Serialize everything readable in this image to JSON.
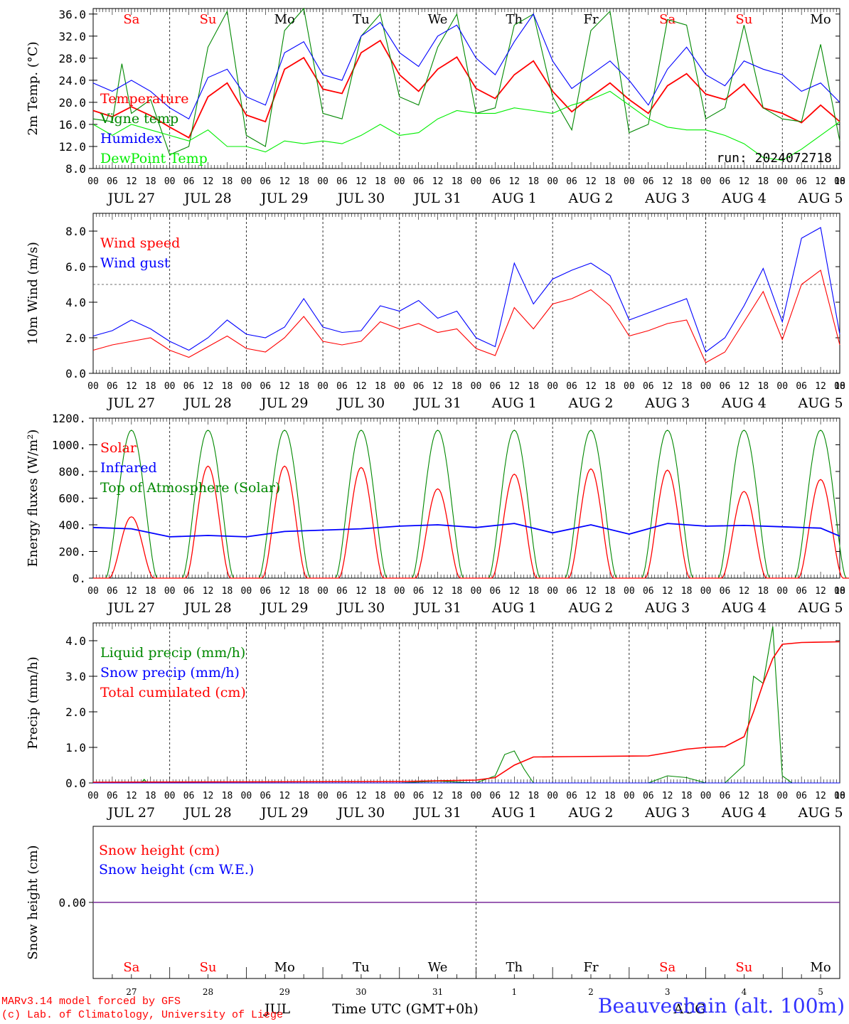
{
  "footer": {
    "credit1": "MARv3.14 model forced by GFS",
    "credit2": "(c) Lab. of Climatology, University of Liege",
    "xaxis_label": "Time UTC (GMT+0h)",
    "month1": "JUL",
    "month2": "AUG",
    "station": "Beauvechain (alt. 100m)"
  },
  "chart_data": [
    {
      "type": "line",
      "ylabel": "2m Temp. (°C)",
      "ylim": [
        8,
        37
      ],
      "yticks": [
        "8.0",
        "12.0",
        "16.0",
        "20.0",
        "24.0",
        "28.0",
        "32.0",
        "36.0"
      ],
      "run_label": "run: 2024072718",
      "day_labels": [
        "Sa",
        "Su",
        "Mo",
        "Tu",
        "We",
        "Th",
        "Fr",
        "Sa",
        "Su",
        "Mo"
      ],
      "date_labels": [
        "JUL 27",
        "JUL 28",
        "JUL 29",
        "JUL 30",
        "JUL 31",
        "AUG  1",
        "AUG  2",
        "AUG  3",
        "AUG  4",
        "AUG  5"
      ],
      "hour_labels": [
        "00",
        "06",
        "12",
        "18"
      ],
      "legend": [
        {
          "name": "Temperature",
          "color": "#ff0000"
        },
        {
          "name": "Vigne temp",
          "color": "#008800"
        },
        {
          "name": "Humidex",
          "color": "#0000ff"
        },
        {
          "name": "DewPoint Temp",
          "color": "#00ee00"
        }
      ],
      "series": [
        {
          "name": "Temperature",
          "color": "#ff0000",
          "x": [
            0,
            6,
            12,
            18,
            24,
            30,
            36,
            42,
            48,
            54,
            60,
            66,
            72,
            78,
            84,
            90,
            96,
            102,
            108,
            114,
            120,
            126,
            132,
            138,
            144,
            150,
            156,
            162,
            168,
            174,
            180,
            186,
            192,
            198,
            204,
            210,
            216,
            222,
            228,
            234
          ],
          "values": [
            18.5,
            17.4,
            19.2,
            17.6,
            15.5,
            13.6,
            21.0,
            23.5,
            17.7,
            16.5,
            26.0,
            28.1,
            22.4,
            21.6,
            29.0,
            31.2,
            25.0,
            22.0,
            26.0,
            28.2,
            22.5,
            20.7,
            25.0,
            27.5,
            22.0,
            18.3,
            21.0,
            23.5,
            20.5,
            18.0,
            23.0,
            25.2,
            21.5,
            20.5,
            23.3,
            19.0,
            18.0,
            16.3,
            19.5,
            16.5
          ]
        },
        {
          "name": "Vigne temp",
          "color": "#008800",
          "x": [
            0,
            6,
            9,
            12,
            18,
            24,
            30,
            36,
            42,
            48,
            54,
            60,
            66,
            72,
            78,
            84,
            90,
            96,
            102,
            108,
            114,
            120,
            126,
            132,
            138,
            144,
            150,
            156,
            162,
            168,
            174,
            180,
            186,
            192,
            198,
            204,
            210,
            216,
            222,
            228,
            234
          ],
          "values": [
            17.0,
            16.5,
            27.0,
            18.0,
            20.5,
            10.5,
            12.0,
            30.0,
            36.5,
            14.0,
            12.0,
            33.0,
            37.0,
            18.0,
            17.0,
            32.0,
            36.0,
            21.0,
            19.5,
            30.0,
            36.0,
            18.0,
            19.0,
            34.0,
            36.0,
            21.0,
            15.0,
            33.0,
            36.5,
            14.5,
            16.0,
            35.0,
            34.0,
            17.0,
            19.0,
            34.0,
            19.0,
            17.0,
            16.5,
            30.5,
            13.0
          ]
        },
        {
          "name": "Humidex",
          "color": "#0000ff",
          "x": [
            0,
            6,
            12,
            18,
            24,
            30,
            36,
            42,
            48,
            54,
            60,
            66,
            72,
            78,
            84,
            90,
            96,
            102,
            108,
            114,
            120,
            126,
            132,
            138,
            144,
            150,
            156,
            162,
            168,
            174,
            180,
            186,
            192,
            198,
            204,
            210,
            216,
            222,
            228,
            234
          ],
          "values": [
            23.5,
            22.0,
            24.0,
            22.0,
            19.0,
            17.0,
            24.5,
            26.0,
            21.0,
            19.5,
            29.0,
            31.0,
            25.0,
            24.0,
            32.0,
            34.5,
            29.0,
            26.5,
            32.0,
            34.0,
            28.0,
            25.0,
            31.0,
            36.0,
            27.5,
            22.5,
            25.0,
            27.5,
            24.0,
            19.5,
            26.0,
            30.0,
            25.0,
            23.0,
            27.5,
            26.0,
            25.0,
            22.0,
            23.5,
            20.0
          ]
        },
        {
          "name": "DewPoint Temp",
          "color": "#00ee00",
          "x": [
            0,
            6,
            12,
            18,
            24,
            30,
            36,
            42,
            48,
            54,
            60,
            66,
            72,
            78,
            84,
            90,
            96,
            102,
            108,
            114,
            120,
            126,
            132,
            138,
            144,
            150,
            156,
            162,
            168,
            174,
            180,
            186,
            192,
            198,
            204,
            210,
            216,
            222,
            228,
            234
          ],
          "values": [
            16.0,
            14.0,
            16.0,
            15.0,
            14.0,
            13.0,
            15.0,
            12.0,
            12.0,
            11.0,
            13.0,
            12.5,
            13.0,
            12.5,
            14.0,
            16.0,
            14.0,
            14.5,
            17.0,
            18.5,
            18.0,
            18.0,
            19.0,
            18.5,
            18.0,
            19.5,
            20.5,
            22.0,
            19.5,
            17.0,
            15.5,
            15.0,
            15.0,
            14.0,
            12.5,
            10.0,
            9.5,
            11.5,
            14.0,
            16.5
          ]
        }
      ]
    },
    {
      "type": "line",
      "ylabel": "10m Wind (m/s)",
      "ylim": [
        0,
        9
      ],
      "yticks": [
        "0.0",
        "2.0",
        "4.0",
        "6.0",
        "8.0"
      ],
      "reference_line": 5,
      "date_labels": [
        "JUL 27",
        "JUL 28",
        "JUL 29",
        "JUL 30",
        "JUL 31",
        "AUG  1",
        "AUG  2",
        "AUG  3",
        "AUG  4",
        "AUG  5"
      ],
      "legend": [
        {
          "name": "Wind speed",
          "color": "#ff0000"
        },
        {
          "name": "Wind gust",
          "color": "#0000ff"
        }
      ],
      "series": [
        {
          "name": "Wind speed",
          "color": "#ff0000",
          "x": [
            0,
            6,
            12,
            18,
            24,
            30,
            36,
            42,
            48,
            54,
            60,
            66,
            72,
            78,
            84,
            90,
            96,
            102,
            108,
            114,
            120,
            126,
            132,
            138,
            144,
            150,
            156,
            162,
            168,
            174,
            180,
            186,
            192,
            198,
            204,
            210,
            216,
            222,
            228,
            234
          ],
          "values": [
            1.3,
            1.6,
            1.8,
            2.0,
            1.3,
            0.9,
            1.5,
            2.1,
            1.4,
            1.2,
            2.0,
            3.2,
            1.8,
            1.6,
            1.8,
            2.9,
            2.5,
            2.8,
            2.3,
            2.5,
            1.4,
            1.0,
            3.7,
            2.5,
            3.9,
            4.2,
            4.7,
            3.8,
            2.1,
            2.4,
            2.8,
            3.0,
            0.6,
            1.2,
            2.9,
            4.6,
            1.9,
            5.0,
            5.8,
            1.6
          ]
        },
        {
          "name": "Wind gust",
          "color": "#0000ff",
          "x": [
            0,
            6,
            12,
            18,
            24,
            30,
            36,
            42,
            48,
            54,
            60,
            66,
            72,
            78,
            84,
            90,
            96,
            102,
            108,
            114,
            120,
            126,
            132,
            138,
            144,
            150,
            156,
            162,
            168,
            174,
            180,
            186,
            192,
            198,
            204,
            210,
            216,
            222,
            228,
            234
          ],
          "values": [
            2.1,
            2.4,
            3.0,
            2.5,
            1.8,
            1.3,
            2.0,
            3.0,
            2.2,
            2.0,
            2.6,
            4.2,
            2.6,
            2.3,
            2.4,
            3.8,
            3.5,
            4.1,
            3.1,
            3.5,
            2.0,
            1.5,
            6.2,
            3.9,
            5.3,
            5.8,
            6.2,
            5.5,
            3.0,
            3.4,
            3.8,
            4.2,
            1.2,
            2.0,
            3.8,
            5.9,
            2.9,
            7.6,
            8.2,
            2.2
          ]
        }
      ]
    },
    {
      "type": "line",
      "ylabel": "Energy fluxes (W/m²)",
      "ylim": [
        0,
        1200
      ],
      "yticks": [
        "0.",
        "200.",
        "400.",
        "600.",
        "800.",
        "1000.",
        "1200."
      ],
      "date_labels": [
        "JUL 27",
        "JUL 28",
        "JUL 29",
        "JUL 30",
        "JUL 31",
        "AUG  1",
        "AUG  2",
        "AUG  3",
        "AUG  4",
        "AUG  5"
      ],
      "legend": [
        {
          "name": "Solar",
          "color": "#ff0000"
        },
        {
          "name": "Infrared",
          "color": "#0000ff"
        },
        {
          "name": "Top of Atmosphere (Solar)",
          "color": "#008800"
        }
      ],
      "toa_peak": 1110,
      "solar_peaks": [
        460,
        840,
        840,
        830,
        670,
        780,
        820,
        810,
        650,
        740
      ],
      "series": [
        {
          "name": "Infrared",
          "color": "#0000ff",
          "x": [
            0,
            12,
            24,
            36,
            48,
            60,
            72,
            84,
            96,
            108,
            120,
            132,
            144,
            156,
            168,
            180,
            192,
            204,
            216,
            228,
            234
          ],
          "values": [
            380,
            370,
            310,
            320,
            310,
            350,
            360,
            370,
            390,
            400,
            380,
            410,
            340,
            400,
            330,
            410,
            390,
            395,
            385,
            375,
            315
          ]
        }
      ]
    },
    {
      "type": "line",
      "ylabel": "Precip (mm/h)",
      "ylim": [
        0,
        4.5
      ],
      "yticks": [
        "0.0",
        "1.0",
        "2.0",
        "3.0",
        "4.0"
      ],
      "date_labels": [
        "JUL 27",
        "JUL 28",
        "JUL 29",
        "JUL 30",
        "JUL 31",
        "AUG  1",
        "AUG  2",
        "AUG  3",
        "AUG  4",
        "AUG  5"
      ],
      "legend": [
        {
          "name": "Liquid precip (mm/h)",
          "color": "#008800"
        },
        {
          "name": "Snow precip (mm/h)",
          "color": "#0000ff"
        },
        {
          "name": "Total cumulated (cm)",
          "color": "#ff0000"
        }
      ],
      "series": [
        {
          "name": "Liquid precip (mm/h)",
          "color": "#008800",
          "x": [
            0,
            15,
            16,
            17,
            24,
            96,
            108,
            120,
            126,
            129,
            132,
            135,
            138,
            144,
            150,
            174,
            180,
            186,
            192,
            198,
            204,
            207,
            210,
            213,
            216,
            219,
            222,
            228,
            234
          ],
          "values": [
            0,
            0,
            0.1,
            0,
            0,
            0,
            0.05,
            0,
            0.2,
            0.8,
            0.9,
            0.4,
            0,
            0,
            0,
            0,
            0.2,
            0.15,
            0,
            0,
            0.5,
            3.0,
            2.8,
            4.4,
            0.2,
            0,
            0,
            0,
            0
          ]
        },
        {
          "name": "Snow precip (mm/h)",
          "color": "#0000ff",
          "x": [
            0,
            234
          ],
          "values": [
            0,
            0
          ]
        },
        {
          "name": "Total cumulated (cm)",
          "color": "#ff0000",
          "x": [
            0,
            96,
            120,
            126,
            132,
            138,
            150,
            174,
            180,
            186,
            192,
            198,
            204,
            207,
            210,
            213,
            216,
            222,
            234
          ],
          "values": [
            0.02,
            0.04,
            0.08,
            0.15,
            0.5,
            0.73,
            0.74,
            0.76,
            0.85,
            0.95,
            1.0,
            1.02,
            1.3,
            2.0,
            2.8,
            3.5,
            3.9,
            3.95,
            3.97
          ]
        }
      ]
    },
    {
      "type": "line",
      "ylabel": "Snow height (cm)",
      "ylim": [
        -1,
        1
      ],
      "yticks": [
        "0.00"
      ],
      "day_labels": [
        "Sa",
        "Su",
        "Mo",
        "Tu",
        "We",
        "Th",
        "Fr",
        "Sa",
        "Su",
        "Mo"
      ],
      "day_numbers": [
        "27",
        "28",
        "29",
        "30",
        "31",
        "1",
        "2",
        "3",
        "4",
        "5"
      ],
      "legend": [
        {
          "name": "Snow height (cm)",
          "color": "#ff0000"
        },
        {
          "name": "Snow height (cm W.E.)",
          "color": "#0000ff"
        }
      ],
      "series": [
        {
          "name": "Snow height (cm)",
          "color": "#ff0000",
          "x": [
            0,
            234
          ],
          "values": [
            0,
            0
          ]
        },
        {
          "name": "Snow height (cm W.E.)",
          "color": "#0000ff",
          "x": [
            0,
            234
          ],
          "values": [
            0,
            0
          ]
        }
      ]
    }
  ]
}
